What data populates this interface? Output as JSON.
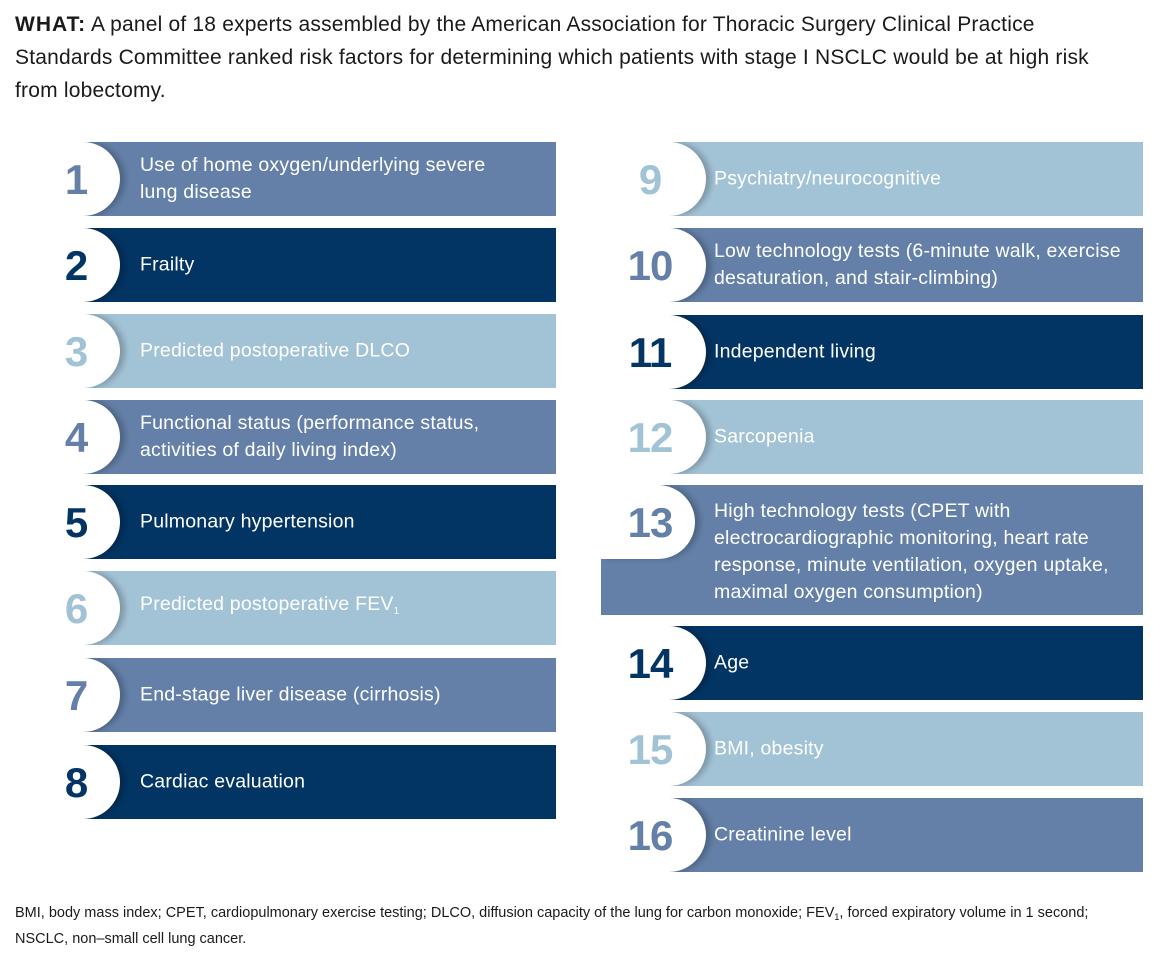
{
  "intro": {
    "lead": "WHAT:",
    "text": "A panel of 18 experts assembled by the American Association for Thoracic Surgery Clinical Practice Standards Committee ranked risk factors for determining which patients with stage I NSCLC would be at high risk from lobectomy."
  },
  "colors": {
    "mid": "#6480a8",
    "dark": "#033564",
    "light": "#a2c2d6"
  },
  "factors": [
    {
      "rank": "1",
      "label": "Use of home oxygen/underlying severe lung disease"
    },
    {
      "rank": "2",
      "label": "Frailty"
    },
    {
      "rank": "3",
      "label": "Predicted postoperative DLCO"
    },
    {
      "rank": "4",
      "label": "Functional status (performance status, activities of daily living index)"
    },
    {
      "rank": "5",
      "label": "Pulmonary hypertension"
    },
    {
      "rank": "6",
      "label": "Predicted postoperative FEV",
      "label_sub": "1"
    },
    {
      "rank": "7",
      "label": "End-stage liver disease (cirrhosis)"
    },
    {
      "rank": "8",
      "label": "Cardiac evaluation"
    },
    {
      "rank": "9",
      "label": "Psychiatry/neurocognitive"
    },
    {
      "rank": "10",
      "label": "Low technology tests (6-minute walk, exercise desaturation, and stair-climbing)"
    },
    {
      "rank": "11",
      "label": "Independent living"
    },
    {
      "rank": "12",
      "label": "Sarcopenia"
    },
    {
      "rank": "13",
      "label": "High technology tests (CPET with electrocardiographic monitoring, heart rate response, minute ventilation, oxygen uptake, maximal oxygen consumption)"
    },
    {
      "rank": "14",
      "label": "Age"
    },
    {
      "rank": "15",
      "label": "BMI, obesity"
    },
    {
      "rank": "16",
      "label": "Creatinine level"
    }
  ],
  "footnote": {
    "part1": "BMI, body mass index; CPET, cardiopulmonary exercise testing; DLCO, diffusion capacity of the lung for carbon monoxide; FEV",
    "sub": "1",
    "part2": ", forced expiratory volume in 1 second; NSCLC, non–small cell lung cancer."
  }
}
